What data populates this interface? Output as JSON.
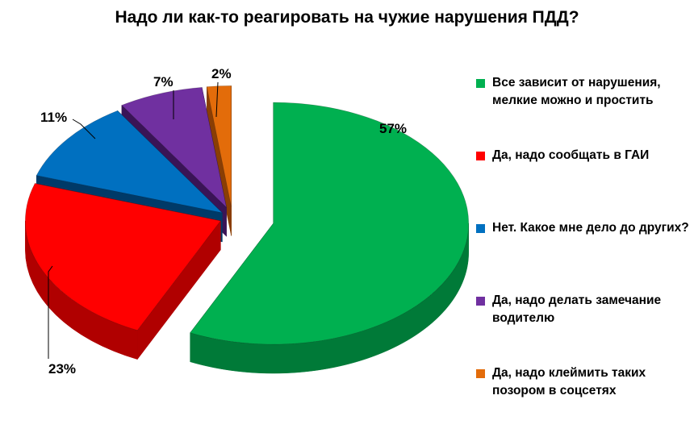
{
  "title": "Надо ли как-то реагировать на чужие нарушения ПДД?",
  "chart_data": {
    "type": "pie",
    "title": "Надо ли как-то реагировать на чужие нарушения ПДД?",
    "legend_position": "right",
    "exploded": true,
    "three_d": true,
    "slices": [
      {
        "label": "Все зависит от нарушения, мелкие можно и простить",
        "value": 57,
        "display": "57%",
        "color": "#00B050",
        "side": "#007A38"
      },
      {
        "label": "Да, надо сообщать в ГАИ",
        "value": 23,
        "display": "23%",
        "color": "#FF0000",
        "side": "#B00000"
      },
      {
        "label": "Нет. Какое мне дело до других?",
        "value": 11,
        "display": "11%",
        "color": "#0070C0",
        "side": "#003A68"
      },
      {
        "label": "Да, надо делать замечание водителю",
        "value": 7,
        "display": "7%",
        "color": "#7030A0",
        "side": "#3A1456"
      },
      {
        "label": "Да, надо клеймить таких позором в соцсетях",
        "value": 2,
        "display": "2%",
        "color": "#E36C0A",
        "side": "#8A3E04"
      }
    ]
  }
}
